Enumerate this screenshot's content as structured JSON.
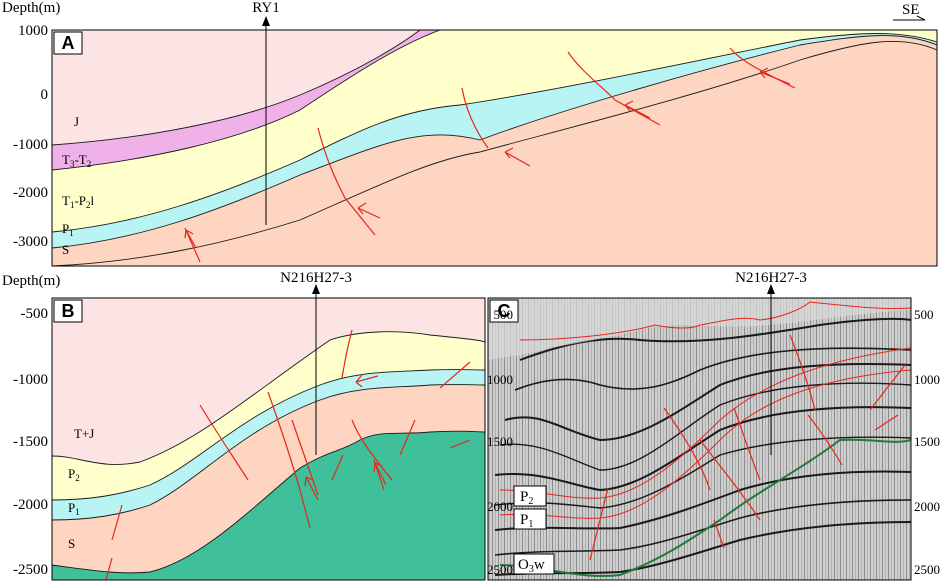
{
  "panel_a": {
    "tag": "A",
    "axis_title": "Depth(m)",
    "ticks": [
      "1000",
      "0",
      "-1000",
      "-2000",
      "-3000"
    ],
    "well": "RY1",
    "direction": "SE",
    "units": {
      "j": "J",
      "t3t2_base": "T",
      "t3t2_sub1": "3",
      "t3t2_mid": "-T",
      "t3t2_sub2": "2",
      "t1p2_base": "T",
      "t1p2_sub1": "1",
      "t1p2_mid": "-P",
      "t1p2_sub2": "2",
      "t1p2_end": "l",
      "p1_base": "P",
      "p1_sub": "1",
      "s": "S"
    }
  },
  "panel_b": {
    "tag": "B",
    "axis_title": "Depth(m)",
    "ticks": [
      "-500",
      "-1000",
      "-1500",
      "-2000",
      "-2500"
    ],
    "well": "N216H27-3",
    "units": {
      "tj": "T+J",
      "p2_base": "P",
      "p2_sub": "2",
      "p1_base": "P",
      "p1_sub": "1",
      "s": "S"
    }
  },
  "panel_c": {
    "tag": "C",
    "well": "N216H27-3",
    "ticks": [
      "500",
      "1000",
      "1500",
      "2000",
      "2500"
    ],
    "labels": {
      "p2_base": "P",
      "p2_sub": "2",
      "p1_base": "P",
      "p1_sub": "1",
      "o_base": "O",
      "o_sub": "3",
      "o_end": "w"
    }
  },
  "colors": {
    "jurassic": "#fde4e4",
    "triassic_upper": "#f0b0e8",
    "triassic_lower": "#ffffcc",
    "permian_lower": "#b8f4f4",
    "silurian": "#fdd5c0",
    "basement": "#3fbf9a",
    "fault": "#e8261c",
    "horizon_green": "#1f7a3c"
  }
}
